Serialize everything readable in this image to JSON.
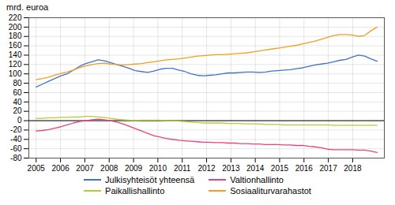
{
  "chart_data": {
    "type": "line",
    "ylabel": "mrd. euroa",
    "x": [
      2005,
      2005.2545,
      2005.5091,
      2005.7636,
      2006.0182,
      2006.2727,
      2006.5273,
      2006.7818,
      2007.0364,
      2007.2909,
      2007.5455,
      2007.8,
      2008.0545,
      2008.3091,
      2008.5636,
      2008.8182,
      2009.0727,
      2009.3273,
      2009.5818,
      2009.8364,
      2010.0909,
      2010.3455,
      2010.6,
      2010.8545,
      2011.1091,
      2011.3636,
      2011.6182,
      2011.8727,
      2012.1273,
      2012.3818,
      2012.6364,
      2012.8909,
      2013.1455,
      2013.4,
      2013.6545,
      2013.9091,
      2014.1636,
      2014.4182,
      2014.6727,
      2014.9273,
      2015.1818,
      2015.4364,
      2015.6909,
      2015.9455,
      2016.2,
      2016.4545,
      2016.7091,
      2016.9636,
      2017.2182,
      2017.4727,
      2017.7273,
      2017.9818,
      2018.2364,
      2018.4909,
      2018.7455,
      2019
    ],
    "series": [
      {
        "name": "Julkisyhteisöt yhteensä",
        "color": "#4472c4",
        "values": [
          72,
          78,
          84,
          90,
          96,
          100,
          108,
          116,
          122,
          126,
          130,
          128,
          124,
          120,
          116,
          112,
          107,
          105,
          103,
          106,
          110,
          112,
          112,
          108,
          105,
          100,
          97,
          96,
          97,
          98,
          100,
          102,
          102,
          103,
          104,
          104,
          103,
          104,
          106,
          107,
          108,
          109,
          111,
          113,
          116,
          119,
          121,
          123,
          126,
          129,
          131,
          136,
          140,
          138,
          132,
          127
        ]
      },
      {
        "name": "Valtionhallinto",
        "color": "#e8447a",
        "values": [
          -22,
          -21,
          -19,
          -16,
          -13,
          -9,
          -5,
          -2,
          0,
          2,
          3,
          2,
          0,
          -3,
          -7,
          -12,
          -17,
          -22,
          -27,
          -32,
          -35,
          -38,
          -40,
          -42,
          -43,
          -44,
          -45,
          -46,
          -46,
          -47,
          -47,
          -48,
          -48,
          -49,
          -49,
          -50,
          -50,
          -51,
          -51,
          -51,
          -52,
          -52,
          -53,
          -53,
          -55,
          -56,
          -58,
          -61,
          -62,
          -62,
          -62,
          -62,
          -63,
          -63,
          -65,
          -68
        ]
      },
      {
        "name": "Paikallishallinto",
        "color": "#b8cc30",
        "values": [
          5,
          5,
          6,
          6,
          7,
          7,
          8,
          8,
          9,
          9,
          8,
          7,
          5,
          3,
          2,
          1,
          0,
          1,
          1,
          1,
          1,
          0,
          0,
          -1,
          -2,
          -3,
          -4,
          -5,
          -5,
          -5,
          -5,
          -6,
          -6,
          -6,
          -7,
          -7,
          -7,
          -8,
          -8,
          -8,
          -9,
          -9,
          -9,
          -9,
          -9,
          -9,
          -9,
          -9,
          -10,
          -10,
          -10,
          -10,
          -10,
          -10,
          -10,
          -10
        ]
      },
      {
        "name": "Sosiaaliturvarahastot",
        "color": "#f0a020",
        "values": [
          88,
          90,
          93,
          97,
          101,
          104,
          108,
          113,
          117,
          120,
          122,
          123,
          121,
          120,
          119,
          120,
          121,
          122,
          124,
          126,
          128,
          130,
          131,
          132,
          134,
          136,
          138,
          139,
          140,
          141,
          141,
          142,
          143,
          144,
          145,
          147,
          149,
          151,
          153,
          155,
          157,
          159,
          161,
          164,
          167,
          170,
          174,
          178,
          182,
          184,
          184,
          183,
          180,
          182,
          192,
          200
        ]
      }
    ],
    "xlim": [
      2004.7,
      2019.3
    ],
    "xticks": [
      2005,
      2006,
      2007,
      2008,
      2009,
      2010,
      2011,
      2012,
      2013,
      2014,
      2015,
      2016,
      2017,
      2018
    ],
    "ylim": [
      -80,
      220
    ],
    "yticks": [
      -80,
      -60,
      -40,
      -20,
      0,
      20,
      40,
      60,
      80,
      100,
      120,
      140,
      160,
      180,
      200,
      220
    ],
    "grid": true,
    "legend": "bottom"
  }
}
